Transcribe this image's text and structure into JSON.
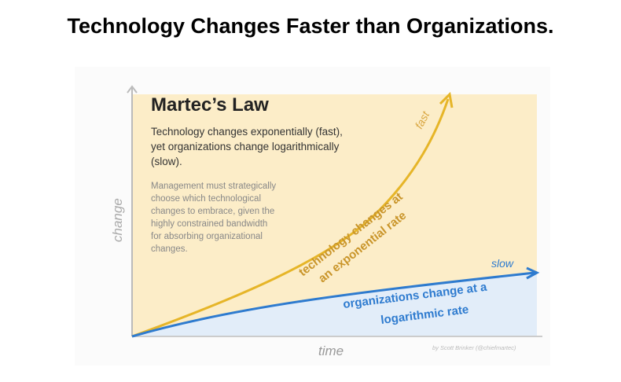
{
  "headline": "Technology Changes Faster than Organizations.",
  "figure": {
    "title": "Martec’s Law",
    "subtitle_lines": [
      "Technology changes exponentially (fast),",
      "yet organizations change logarithmically",
      "(slow)."
    ],
    "body_lines": [
      "Management must strategically",
      "choose which technological",
      "changes to embrace, given the",
      "highly constrained bandwidth",
      "for absorbing organizational",
      "changes."
    ],
    "y_axis_label": "change",
    "x_axis_label": "time",
    "fast_label": "fast",
    "slow_label": "slow",
    "tech_label_lines": [
      "technology changes at",
      "an exponential rate"
    ],
    "org_label_lines": [
      "organizations change at a",
      "logarithmic rate"
    ],
    "credit": "by Scott Brinker (@chiefmartec)",
    "colors": {
      "tech": "#e6b528",
      "tech_fill": "#fcedc8",
      "org": "#2e7bcf",
      "org_fill": "#e2edf9",
      "tech_text": "#c9952a"
    }
  }
}
